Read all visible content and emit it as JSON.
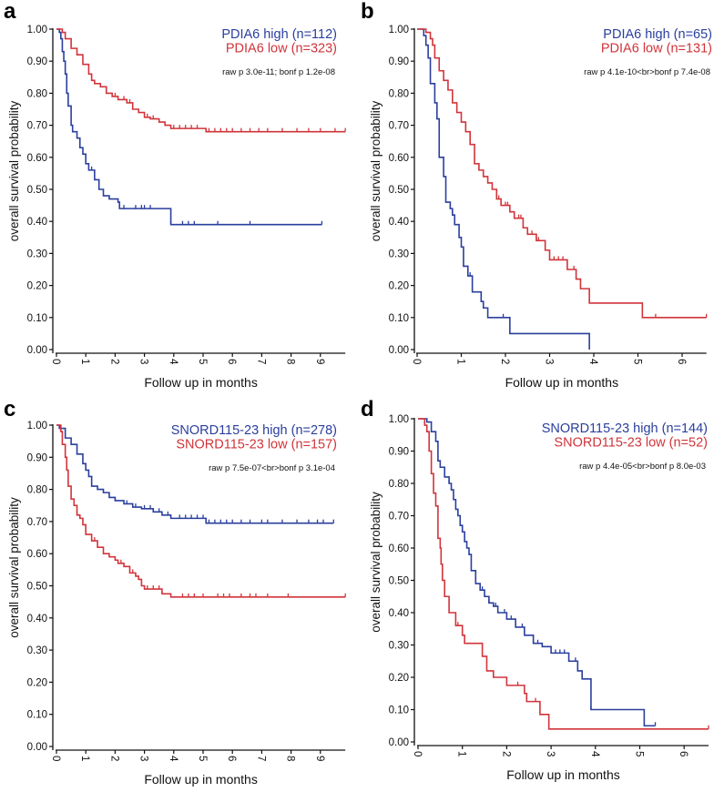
{
  "colors": {
    "high": "#2a3f9e",
    "low": "#d1343a",
    "axis": "#111111"
  },
  "chart_data": [
    {
      "type": "line",
      "panel": "a",
      "xlabel": "Follow up in months",
      "ylabel": "overall survival probability",
      "xlim": [
        0,
        9.85
      ],
      "ylim": [
        0,
        1
      ],
      "xticks": [
        "0",
        "1",
        "2",
        "3",
        "4",
        "5",
        "6",
        "7",
        "8",
        "9"
      ],
      "yticks": [
        "0.00",
        "0.10",
        "0.20",
        "0.30",
        "0.40",
        "0.50",
        "0.60",
        "0.70",
        "0.80",
        "0.90",
        "1.00"
      ],
      "pvalue": "raw p 3.0e-11; bonf p 1.2e-08",
      "series": [
        {
          "name": "PDIA6 high (n=112)",
          "color": "high",
          "steps": [
            [
              0,
              1
            ],
            [
              0.1,
              0.99
            ],
            [
              0.15,
              0.97
            ],
            [
              0.2,
              0.93
            ],
            [
              0.25,
              0.9
            ],
            [
              0.3,
              0.86
            ],
            [
              0.35,
              0.8
            ],
            [
              0.4,
              0.76
            ],
            [
              0.5,
              0.7
            ],
            [
              0.55,
              0.68
            ],
            [
              0.7,
              0.66
            ],
            [
              0.8,
              0.63
            ],
            [
              0.9,
              0.61
            ],
            [
              1.0,
              0.58
            ],
            [
              1.1,
              0.56
            ],
            [
              1.3,
              0.53
            ],
            [
              1.45,
              0.5
            ],
            [
              1.6,
              0.48
            ],
            [
              1.8,
              0.47
            ],
            [
              2.1,
              0.46
            ],
            [
              2.15,
              0.44
            ],
            [
              3.9,
              0.39
            ]
          ],
          "end": 9.05,
          "censored": [
            1.2,
            2.3,
            2.7,
            2.9,
            3.0,
            3.2,
            3.9,
            4.3,
            4.5,
            4.7,
            5.5,
            6.6,
            9.05
          ]
        },
        {
          "name": "PDIA6 low (n=323)",
          "color": "low",
          "steps": [
            [
              0,
              1
            ],
            [
              0.2,
              0.99
            ],
            [
              0.3,
              0.97
            ],
            [
              0.5,
              0.94
            ],
            [
              0.7,
              0.92
            ],
            [
              0.9,
              0.89
            ],
            [
              1.1,
              0.86
            ],
            [
              1.2,
              0.84
            ],
            [
              1.3,
              0.83
            ],
            [
              1.5,
              0.82
            ],
            [
              1.7,
              0.8
            ],
            [
              1.9,
              0.79
            ],
            [
              2.1,
              0.78
            ],
            [
              2.4,
              0.77
            ],
            [
              2.6,
              0.75
            ],
            [
              2.8,
              0.74
            ],
            [
              3.0,
              0.725
            ],
            [
              3.2,
              0.72
            ],
            [
              3.5,
              0.71
            ],
            [
              3.7,
              0.7
            ],
            [
              3.9,
              0.69
            ],
            [
              5.1,
              0.68
            ]
          ],
          "end": 9.85,
          "censored": [
            2.0,
            2.3,
            2.5,
            3.1,
            3.3,
            4.0,
            4.2,
            4.4,
            4.6,
            4.8,
            5.2,
            5.4,
            5.6,
            5.8,
            6.0,
            6.3,
            6.6,
            6.9,
            7.2,
            7.7,
            8.2,
            8.6,
            9.0,
            9.5,
            9.85
          ]
        }
      ]
    },
    {
      "type": "line",
      "panel": "b",
      "xlabel": "Follow up in months",
      "ylabel": "overall survival probability",
      "xlim": [
        0,
        6.55
      ],
      "ylim": [
        0,
        1
      ],
      "xticks": [
        "0",
        "1",
        "2",
        "3",
        "4",
        "5",
        "6"
      ],
      "yticks": [
        "0.00",
        "0.10",
        "0.20",
        "0.30",
        "0.40",
        "0.50",
        "0.60",
        "0.70",
        "0.80",
        "0.90",
        "1.00"
      ],
      "pvalue": "raw p 4.1e-10<br>bonf p 7.4e-08",
      "series": [
        {
          "name": "PDIA6 high (n=65)",
          "color": "high",
          "steps": [
            [
              0,
              1
            ],
            [
              0.15,
              0.98
            ],
            [
              0.2,
              0.95
            ],
            [
              0.25,
              0.91
            ],
            [
              0.3,
              0.83
            ],
            [
              0.4,
              0.77
            ],
            [
              0.45,
              0.72
            ],
            [
              0.5,
              0.6
            ],
            [
              0.6,
              0.54
            ],
            [
              0.65,
              0.46
            ],
            [
              0.75,
              0.44
            ],
            [
              0.8,
              0.42
            ],
            [
              0.85,
              0.39
            ],
            [
              0.95,
              0.35
            ],
            [
              1.0,
              0.32
            ],
            [
              1.05,
              0.26
            ],
            [
              1.15,
              0.23
            ],
            [
              1.25,
              0.18
            ],
            [
              1.45,
              0.15
            ],
            [
              1.5,
              0.13
            ],
            [
              1.6,
              0.1
            ],
            [
              2.1,
              0.05
            ],
            [
              3.9,
              0
            ]
          ],
          "end": 3.9,
          "censored": [
            0.75,
            1.2,
            1.95
          ]
        },
        {
          "name": "PDIA6 low (n=131)",
          "color": "low",
          "steps": [
            [
              0,
              1
            ],
            [
              0.2,
              0.99
            ],
            [
              0.3,
              0.97
            ],
            [
              0.35,
              0.95
            ],
            [
              0.4,
              0.91
            ],
            [
              0.5,
              0.87
            ],
            [
              0.6,
              0.84
            ],
            [
              0.7,
              0.81
            ],
            [
              0.8,
              0.77
            ],
            [
              0.9,
              0.74
            ],
            [
              1.0,
              0.71
            ],
            [
              1.1,
              0.68
            ],
            [
              1.2,
              0.64
            ],
            [
              1.3,
              0.58
            ],
            [
              1.4,
              0.56
            ],
            [
              1.5,
              0.54
            ],
            [
              1.6,
              0.52
            ],
            [
              1.7,
              0.5
            ],
            [
              1.8,
              0.47
            ],
            [
              1.9,
              0.45
            ],
            [
              2.1,
              0.43
            ],
            [
              2.2,
              0.41
            ],
            [
              2.4,
              0.38
            ],
            [
              2.5,
              0.36
            ],
            [
              2.7,
              0.34
            ],
            [
              2.9,
              0.31
            ],
            [
              3.0,
              0.28
            ],
            [
              3.4,
              0.25
            ],
            [
              3.6,
              0.22
            ],
            [
              3.7,
              0.19
            ],
            [
              3.9,
              0.145
            ],
            [
              5.1,
              0.1
            ]
          ],
          "end": 6.55,
          "censored": [
            1.85,
            2.0,
            2.05,
            2.3,
            2.35,
            2.6,
            2.7,
            2.75,
            3.1,
            3.2,
            3.3,
            3.55,
            3.9,
            5.4,
            6.55
          ]
        }
      ]
    },
    {
      "type": "line",
      "panel": "c",
      "xlabel": "Follow up in months",
      "ylabel": "overall survival probability",
      "xlim": [
        0,
        9.85
      ],
      "ylim": [
        0,
        1
      ],
      "xticks": [
        "0",
        "1",
        "2",
        "3",
        "4",
        "5",
        "6",
        "7",
        "8",
        "9"
      ],
      "yticks": [
        "0.00",
        "0.10",
        "0.20",
        "0.30",
        "0.40",
        "0.50",
        "0.60",
        "0.70",
        "0.80",
        "0.90",
        "1.00"
      ],
      "pvalue": "raw p 7.5e-07<br>bonf p 3.1e-04",
      "series": [
        {
          "name": "SNORD115-23 high (n=278)",
          "color": "high",
          "steps": [
            [
              0,
              1
            ],
            [
              0.1,
              0.99
            ],
            [
              0.3,
              0.96
            ],
            [
              0.5,
              0.94
            ],
            [
              0.7,
              0.91
            ],
            [
              0.9,
              0.88
            ],
            [
              1.0,
              0.86
            ],
            [
              1.1,
              0.84
            ],
            [
              1.2,
              0.81
            ],
            [
              1.4,
              0.8
            ],
            [
              1.6,
              0.79
            ],
            [
              1.8,
              0.775
            ],
            [
              2.0,
              0.765
            ],
            [
              2.3,
              0.755
            ],
            [
              2.6,
              0.745
            ],
            [
              2.9,
              0.74
            ],
            [
              3.3,
              0.73
            ],
            [
              3.6,
              0.72
            ],
            [
              3.9,
              0.71
            ],
            [
              5.1,
              0.695
            ]
          ],
          "end": 9.45,
          "censored": [
            2.0,
            2.4,
            2.7,
            3.0,
            3.2,
            3.5,
            3.8,
            4.2,
            4.4,
            4.6,
            4.8,
            5.0,
            5.2,
            5.4,
            5.6,
            5.8,
            6.0,
            6.3,
            6.6,
            7.0,
            7.2,
            7.7,
            8.2,
            8.6,
            8.9,
            9.1,
            9.45
          ]
        },
        {
          "name": "SNORD115-23 low (n=157)",
          "color": "low",
          "steps": [
            [
              0,
              1
            ],
            [
              0.15,
              0.98
            ],
            [
              0.2,
              0.94
            ],
            [
              0.3,
              0.9
            ],
            [
              0.35,
              0.86
            ],
            [
              0.4,
              0.81
            ],
            [
              0.5,
              0.77
            ],
            [
              0.6,
              0.75
            ],
            [
              0.7,
              0.72
            ],
            [
              0.8,
              0.71
            ],
            [
              0.9,
              0.69
            ],
            [
              1.0,
              0.66
            ],
            [
              1.2,
              0.64
            ],
            [
              1.4,
              0.62
            ],
            [
              1.6,
              0.6
            ],
            [
              1.8,
              0.59
            ],
            [
              2.0,
              0.58
            ],
            [
              2.1,
              0.57
            ],
            [
              2.3,
              0.56
            ],
            [
              2.5,
              0.54
            ],
            [
              2.7,
              0.53
            ],
            [
              2.8,
              0.52
            ],
            [
              2.9,
              0.5
            ],
            [
              3.0,
              0.49
            ],
            [
              3.6,
              0.475
            ],
            [
              3.9,
              0.465
            ]
          ],
          "end": 9.85,
          "censored": [
            0.7,
            1.3,
            2.2,
            2.6,
            3.1,
            3.3,
            3.5,
            4.3,
            4.5,
            4.7,
            5.0,
            5.5,
            5.7,
            5.9,
            6.3,
            6.6,
            6.8,
            7.2,
            7.9,
            9.85
          ]
        }
      ]
    },
    {
      "type": "line",
      "panel": "d",
      "xlabel": "Follow up in months",
      "ylabel": "overall survival probability",
      "xlim": [
        0,
        6.55
      ],
      "ylim": [
        0,
        1
      ],
      "xticks": [
        "0",
        "1",
        "2",
        "3",
        "4",
        "5",
        "6"
      ],
      "yticks": [
        "0.00",
        "0.10",
        "0.20",
        "0.30",
        "0.40",
        "0.50",
        "0.60",
        "0.70",
        "0.80",
        "0.90",
        "1.00"
      ],
      "pvalue": "raw p 4.4e-05<br>bonf p 8.0e-03",
      "series": [
        {
          "name": "SNORD115-23 high (n=144)",
          "color": "high",
          "steps": [
            [
              0,
              1
            ],
            [
              0.2,
              0.99
            ],
            [
              0.3,
              0.96
            ],
            [
              0.4,
              0.93
            ],
            [
              0.45,
              0.87
            ],
            [
              0.5,
              0.85
            ],
            [
              0.6,
              0.82
            ],
            [
              0.7,
              0.8
            ],
            [
              0.75,
              0.78
            ],
            [
              0.8,
              0.75
            ],
            [
              0.85,
              0.72
            ],
            [
              0.9,
              0.7
            ],
            [
              0.95,
              0.67
            ],
            [
              1.0,
              0.65
            ],
            [
              1.05,
              0.62
            ],
            [
              1.1,
              0.6
            ],
            [
              1.15,
              0.58
            ],
            [
              1.2,
              0.53
            ],
            [
              1.3,
              0.49
            ],
            [
              1.4,
              0.47
            ],
            [
              1.5,
              0.45
            ],
            [
              1.6,
              0.43
            ],
            [
              1.7,
              0.42
            ],
            [
              1.8,
              0.4
            ],
            [
              2.0,
              0.38
            ],
            [
              2.2,
              0.355
            ],
            [
              2.4,
              0.33
            ],
            [
              2.6,
              0.305
            ],
            [
              2.8,
              0.295
            ],
            [
              3.0,
              0.275
            ],
            [
              3.4,
              0.25
            ],
            [
              3.6,
              0.22
            ],
            [
              3.7,
              0.195
            ],
            [
              3.9,
              0.1
            ],
            [
              5.1,
              0.05
            ]
          ],
          "end": 5.35,
          "censored": [
            0.7,
            1.45,
            1.6,
            1.75,
            1.95,
            2.1,
            2.35,
            2.6,
            2.7,
            3.1,
            3.2,
            3.3,
            3.55,
            3.9,
            5.35
          ]
        },
        {
          "name": "SNORD115-23 low (n=52)",
          "color": "low",
          "steps": [
            [
              0,
              1
            ],
            [
              0.15,
              0.98
            ],
            [
              0.2,
              0.96
            ],
            [
              0.25,
              0.9
            ],
            [
              0.3,
              0.83
            ],
            [
              0.35,
              0.77
            ],
            [
              0.4,
              0.73
            ],
            [
              0.45,
              0.63
            ],
            [
              0.5,
              0.6
            ],
            [
              0.52,
              0.55
            ],
            [
              0.55,
              0.5
            ],
            [
              0.6,
              0.45
            ],
            [
              0.7,
              0.4
            ],
            [
              0.85,
              0.36
            ],
            [
              1.0,
              0.33
            ],
            [
              1.05,
              0.305
            ],
            [
              1.45,
              0.265
            ],
            [
              1.55,
              0.22
            ],
            [
              1.7,
              0.2
            ],
            [
              2.0,
              0.175
            ],
            [
              2.4,
              0.15
            ],
            [
              2.45,
              0.125
            ],
            [
              2.75,
              0.085
            ],
            [
              2.95,
              0.04
            ]
          ],
          "end": 6.55,
          "censored": [
            0.9,
            2.25,
            2.65,
            6.55
          ]
        }
      ]
    }
  ]
}
